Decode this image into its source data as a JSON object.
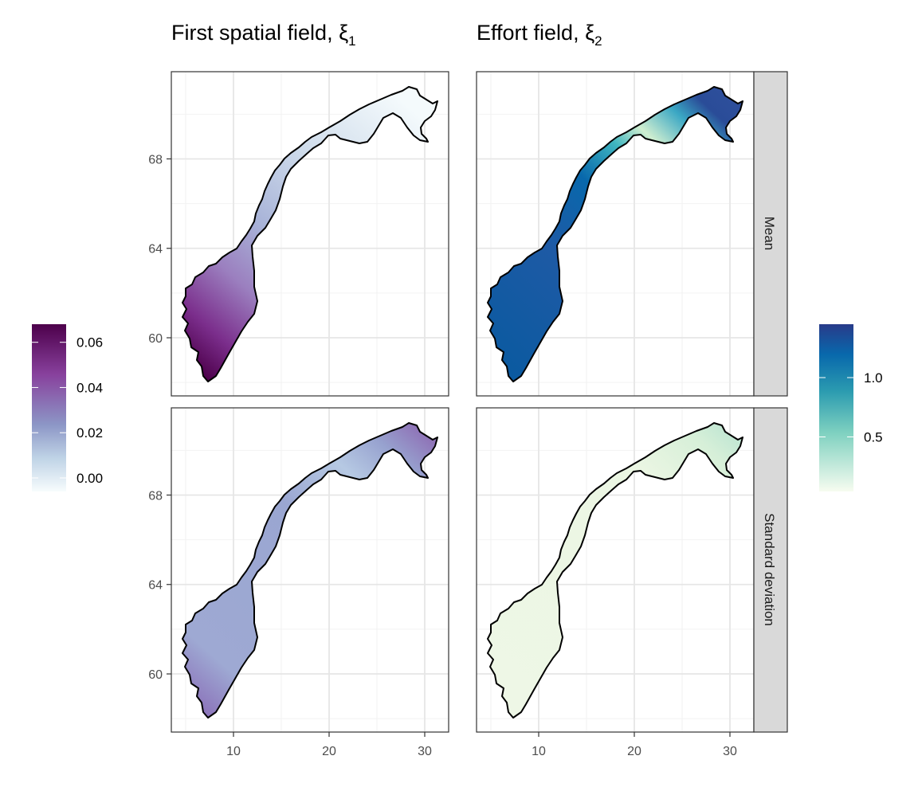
{
  "chart_data": [
    {
      "type": "heatmap",
      "panel": "first-spatial-field",
      "title": "First spatial field, ξ",
      "title_subscript": "1",
      "x_ticks": [
        10,
        20,
        30
      ],
      "y_ticks": [
        60,
        64,
        68
      ],
      "xlim": [
        3.5,
        32.5
      ],
      "ylim_mean": [
        57.4,
        71.9
      ],
      "ylim_sd": [
        57.4,
        71.9
      ],
      "colorbar": {
        "ticks": [
          "0.06",
          "0.04",
          "0.02",
          "0.00"
        ],
        "tick_values": [
          0.06,
          0.04,
          0.02,
          0.0
        ],
        "range": [
          -0.006,
          0.068
        ],
        "colors": [
          "#f7fcfd",
          "#bfd3e6",
          "#8c96c6",
          "#88419d",
          "#4d004b"
        ]
      },
      "rows": [
        {
          "facet": "Mean",
          "surface": "gradient from southwest (≈0.065) to north (≈0.00)"
        },
        {
          "facet": "Standard deviation",
          "surface": "mostly ≈0.03, higher in far south and northeast"
        }
      ],
      "grid": true,
      "legend_position": "left"
    },
    {
      "type": "heatmap",
      "panel": "effort-field",
      "title": "Effort field, ξ",
      "title_subscript": "2",
      "x_ticks": [
        10,
        20,
        30
      ],
      "y_ticks": [
        60,
        64,
        68
      ],
      "xlim": [
        3.5,
        32.5
      ],
      "colorbar": {
        "ticks": [
          "1.0",
          "0.5"
        ],
        "tick_values": [
          1.0,
          0.5
        ],
        "range": [
          0.04,
          1.45
        ],
        "colors": [
          "#f7fcf0",
          "#ccebc5",
          "#4eb3d3",
          "#0868ac",
          "#283b8a"
        ]
      },
      "rows": [
        {
          "facet": "Mean",
          "surface": "≈1.2–1.4 in the south, low near x≈18–22, high in far northeast"
        },
        {
          "facet": "Standard deviation",
          "surface": "low (≈0.1) everywhere, slightly higher in far northeast"
        }
      ],
      "grid": true,
      "legend_position": "right"
    }
  ],
  "strips": [
    "Mean",
    "Standard deviation"
  ]
}
